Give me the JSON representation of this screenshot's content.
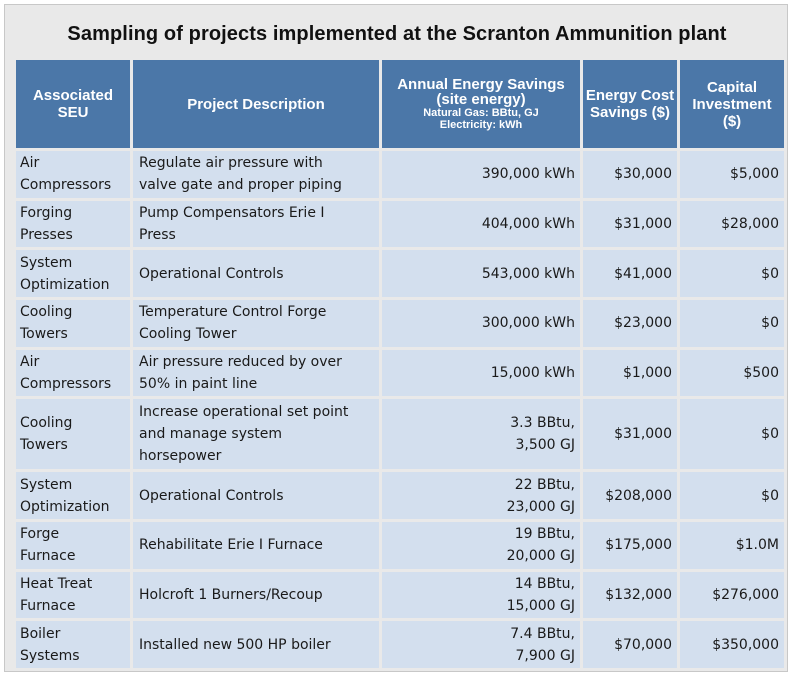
{
  "title": "Sampling of projects implemented at the Scranton Ammunition plant",
  "headers": {
    "seu": "Associated SEU",
    "description": "Project Description",
    "energy_main": "Annual Energy Savings (site energy)",
    "energy_gas": "Natural Gas: BBtu, GJ",
    "energy_elec": "Electricity: kWh",
    "cost": "Energy Cost Savings ($)",
    "capital": "Capital Investment ($)"
  },
  "rows": [
    {
      "seu": [
        "Air",
        "Compressors"
      ],
      "description": [
        "Regulate air pressure with",
        "valve gate and proper piping"
      ],
      "energy": [
        "390,000 kWh"
      ],
      "cost": "$30,000",
      "capital": "$5,000"
    },
    {
      "seu": [
        "Forging",
        "Presses"
      ],
      "description": [
        "Pump Compensators Erie I",
        "Press"
      ],
      "energy": [
        "404,000 kWh"
      ],
      "cost": "$31,000",
      "capital": "$28,000"
    },
    {
      "seu": [
        "System",
        "Optimization"
      ],
      "description": [
        "Operational Controls"
      ],
      "energy": [
        "543,000 kWh"
      ],
      "cost": "$41,000",
      "capital": "$0"
    },
    {
      "seu": [
        "Cooling",
        "Towers"
      ],
      "description": [
        "Temperature Control Forge",
        "Cooling Tower"
      ],
      "energy": [
        "300,000 kWh"
      ],
      "cost": "$23,000",
      "capital": "$0"
    },
    {
      "seu": [
        "Air",
        "Compressors"
      ],
      "description": [
        "Air pressure reduced by over",
        "50% in paint line"
      ],
      "energy": [
        "15,000 kWh"
      ],
      "cost": "$1,000",
      "capital": "$500"
    },
    {
      "seu": [
        "Cooling",
        "Towers"
      ],
      "description": [
        "Increase operational set point",
        "and manage system",
        "horsepower"
      ],
      "energy": [
        "3.3 BBtu,",
        "3,500 GJ"
      ],
      "cost": "$31,000",
      "capital": "$0"
    },
    {
      "seu": [
        "System",
        "Optimization"
      ],
      "description": [
        "Operational Controls"
      ],
      "energy": [
        "22 BBtu,",
        "23,000 GJ"
      ],
      "cost": "$208,000",
      "capital": "$0"
    },
    {
      "seu": [
        "Forge",
        "Furnace"
      ],
      "description": [
        "Rehabilitate Erie I Furnace"
      ],
      "energy": [
        "19 BBtu,",
        "20,000 GJ"
      ],
      "cost": "$175,000",
      "capital": "$1.0M"
    },
    {
      "seu": [
        "Heat Treat",
        "Furnace"
      ],
      "description": [
        "Holcroft 1 Burners/Recoup"
      ],
      "energy": [
        "14 BBtu,",
        "15,000 GJ"
      ],
      "cost": "$132,000",
      "capital": "$276,000"
    },
    {
      "seu": [
        "Boiler",
        "Systems"
      ],
      "description": [
        "Installed new 500 HP boiler"
      ],
      "energy": [
        "7.4 BBtu,",
        "7,900 GJ"
      ],
      "cost": "$70,000",
      "capital": "$350,000"
    }
  ]
}
